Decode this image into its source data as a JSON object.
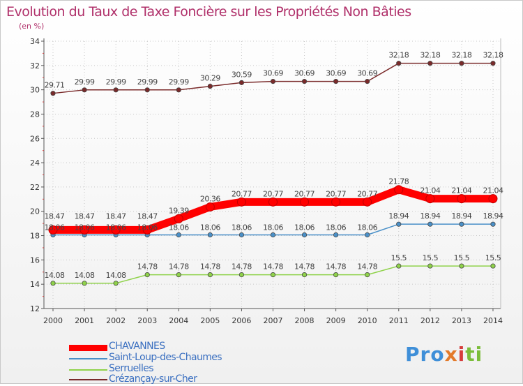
{
  "chart_data": {
    "type": "line",
    "title": "Evolution du Taux de Taxe Foncière sur les Propriétés Non Bâties",
    "unit_label": "(en %)",
    "xlabel": "",
    "ylabel": "",
    "ylim": [
      12,
      34
    ],
    "yticks": [
      12,
      14,
      16,
      18,
      20,
      22,
      24,
      26,
      28,
      30,
      32,
      34
    ],
    "x": [
      "2000",
      "2001",
      "2002",
      "2003",
      "2004",
      "2005",
      "2006",
      "2007",
      "2008",
      "2009",
      "2010",
      "2011",
      "2012",
      "2013",
      "2014"
    ],
    "series": [
      {
        "name": "CHAVANNES",
        "color": "#ff0000",
        "values": [
          18.47,
          18.47,
          18.47,
          18.47,
          19.39,
          20.36,
          20.77,
          20.77,
          20.77,
          20.77,
          20.77,
          21.78,
          21.04,
          21.04,
          21.04
        ],
        "labels": [
          "18.47",
          "18.47",
          "18.47",
          "18.47",
          "19.39",
          "20.36",
          "20.77",
          "20.77",
          "20.77",
          "20.77",
          "20.77",
          "21.78",
          "21.04",
          "21.04",
          "21.04"
        ]
      },
      {
        "name": "Saint-Loup-des-Chaumes",
        "color": "#4a90c8",
        "values": [
          18.06,
          18.06,
          18.06,
          18.06,
          18.06,
          18.06,
          18.06,
          18.06,
          18.06,
          18.06,
          18.06,
          18.94,
          18.94,
          18.94,
          18.94
        ],
        "labels": [
          "18.06",
          "18.06",
          "18.06",
          "18.06",
          "18.06",
          "18.06",
          "18.06",
          "18.06",
          "18.06",
          "18.06",
          "18.06",
          "18.94",
          "18.94",
          "18.94",
          "18.94"
        ]
      },
      {
        "name": "Serruelles",
        "color": "#8fd24a",
        "values": [
          14.08,
          14.08,
          14.08,
          14.78,
          14.78,
          14.78,
          14.78,
          14.78,
          14.78,
          14.78,
          14.78,
          15.5,
          15.5,
          15.5,
          15.5
        ],
        "labels": [
          "14.08",
          "14.08",
          "14.08",
          "14.78",
          "14.78",
          "14.78",
          "14.78",
          "14.78",
          "14.78",
          "14.78",
          "14.78",
          "15.5",
          "15.5",
          "15.5",
          "15.5"
        ]
      },
      {
        "name": "Crézançay-sur-Cher",
        "color": "#7a2a2a",
        "values": [
          29.71,
          29.99,
          29.99,
          29.99,
          29.99,
          30.29,
          30.59,
          30.69,
          30.69,
          30.69,
          30.69,
          32.18,
          32.18,
          32.18,
          32.18
        ],
        "labels": [
          "29.71",
          "29.99",
          "29.99",
          "29.99",
          "29.99",
          "30.29",
          "30.59",
          "30.69",
          "30.69",
          "30.69",
          "30.69",
          "32.18",
          "32.18",
          "32.18",
          "32.18"
        ]
      }
    ],
    "legend_position": "bottom-left"
  },
  "logo": {
    "p1": "Pro",
    "p2": "x",
    "p3": "i",
    "p4": "ti"
  }
}
